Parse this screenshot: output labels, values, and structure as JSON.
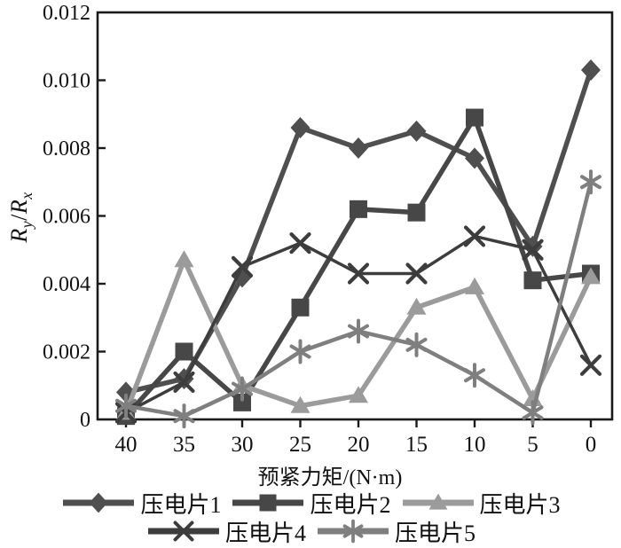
{
  "chart_data": {
    "type": "line",
    "title": "",
    "xlabel": "预紧力矩/(N·m)",
    "ylabel": "R_y/R_x",
    "ylabel_parts": {
      "r1": "R",
      "s1": "y",
      "slash": "/",
      "r2": "R",
      "s2": "x"
    },
    "x_categories": [
      "40",
      "35",
      "30",
      "25",
      "20",
      "15",
      "10",
      "5",
      "0"
    ],
    "y_ticks": [
      "0",
      "0.002",
      "0.004",
      "0.006",
      "0.008",
      "0.010",
      "0.012"
    ],
    "ylim": [
      0,
      0.012
    ],
    "grid": false,
    "legend_position": "bottom",
    "legend_rows": [
      [
        0,
        1,
        2
      ],
      [
        3,
        4
      ]
    ],
    "axis_color": "#1a1a1a",
    "series": [
      {
        "name": "压电片1",
        "marker": "diamond",
        "color": "#4f4f4f",
        "values": [
          0.0008,
          0.0012,
          0.0042,
          0.0086,
          0.008,
          0.0085,
          0.0077,
          0.0051,
          0.0103
        ]
      },
      {
        "name": "压电片2",
        "marker": "square",
        "color": "#474747",
        "values": [
          0.0001,
          0.002,
          0.0005,
          0.0033,
          0.0062,
          0.0061,
          0.0089,
          0.0041,
          0.0043
        ]
      },
      {
        "name": "压电片3",
        "marker": "triangle",
        "color": "#9b9b9b",
        "values": [
          0.0002,
          0.0047,
          0.001,
          0.0004,
          0.0007,
          0.0033,
          0.0039,
          0.0006,
          0.0042
        ]
      },
      {
        "name": "压电片4",
        "marker": "x",
        "color": "#3d3d3d",
        "values": [
          0.0002,
          0.0011,
          0.0045,
          0.0052,
          0.0043,
          0.0043,
          0.0054,
          0.005,
          0.0016
        ]
      },
      {
        "name": "压电片5",
        "marker": "asterisk",
        "color": "#7f7f7f",
        "values": [
          0.0004,
          0.0001,
          0.0009,
          0.002,
          0.0026,
          0.0022,
          0.0013,
          0.0002,
          0.007
        ]
      }
    ]
  }
}
